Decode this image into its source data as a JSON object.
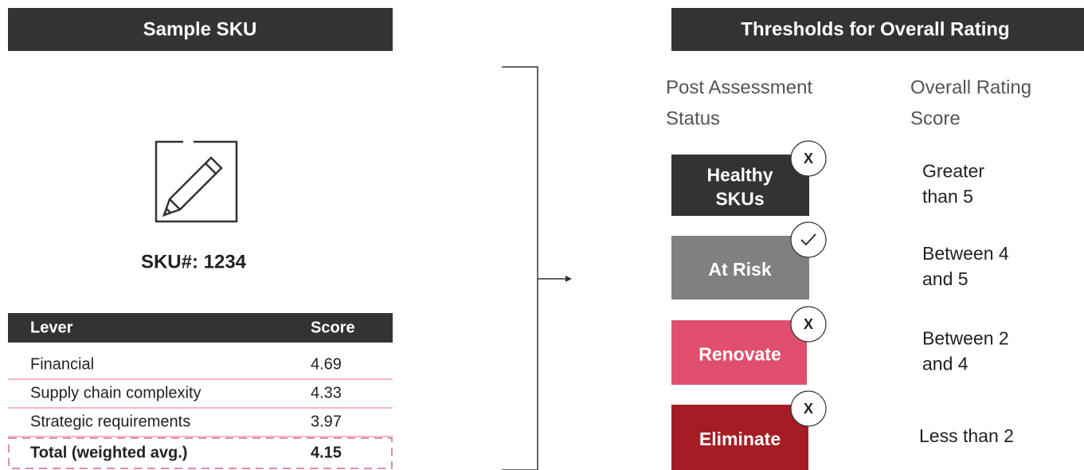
{
  "left": {
    "title": "Sample SKU",
    "sku": "SKU#: 1234",
    "table": {
      "header": [
        "Lever",
        "Score"
      ],
      "rows": [
        [
          "Financial",
          "4.69"
        ],
        [
          "Supply chain complexity",
          "4.33"
        ],
        [
          "Strategic requirements",
          "3.97"
        ]
      ],
      "total": [
        "Total (weighted avg.)",
        "4.15"
      ]
    }
  },
  "right": {
    "title": "Thresholds for Overall Rating",
    "columns": [
      [
        "Post Assessment",
        "Status"
      ],
      [
        "Overall Rating",
        "Score"
      ]
    ],
    "statuses": [
      {
        "label": [
          "Healthy",
          "SKUs"
        ],
        "badge": "X",
        "score": [
          "Greater",
          "than 5"
        ]
      },
      {
        "label": [
          "At Risk"
        ],
        "score": [
          "Between 4",
          "and 5"
        ]
      },
      {
        "label": [
          "Renovate"
        ],
        "badge": "X",
        "score": [
          "Between 2",
          "and 4"
        ]
      },
      {
        "label": [
          "Eliminate"
        ],
        "badge": "X",
        "score": [
          "Less than 2"
        ]
      }
    ]
  }
}
